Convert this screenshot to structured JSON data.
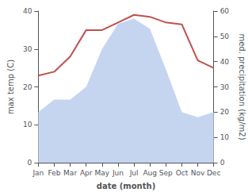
{
  "chart_data": {
    "type": "line",
    "categories": [
      "Jan",
      "Feb",
      "Mar",
      "Apr",
      "May",
      "Jun",
      "Jul",
      "Aug",
      "Sep",
      "Oct",
      "Nov",
      "Dec"
    ],
    "series": [
      {
        "type": "area",
        "color": "#c5d5f0",
        "axis": "y2",
        "values": [
          20,
          25,
          25,
          30,
          45,
          55,
          57,
          53,
          37,
          20,
          18,
          20
        ]
      },
      {
        "type": "line",
        "color": "#c0504d",
        "values": [
          23,
          24,
          28,
          35,
          35,
          37,
          39,
          38.5,
          37,
          36.5,
          27,
          25
        ]
      }
    ],
    "xlabel": "date (month)",
    "ylabel": "max temp (C)",
    "y2label": "med. precipitation (kg/m2)",
    "ylim": [
      0,
      40
    ],
    "yticks": [
      0,
      10,
      20,
      30,
      40
    ],
    "y2lim": [
      0,
      60
    ],
    "y2ticks": [
      0,
      10,
      20,
      30,
      40,
      50,
      60
    ],
    "grid": false
  }
}
